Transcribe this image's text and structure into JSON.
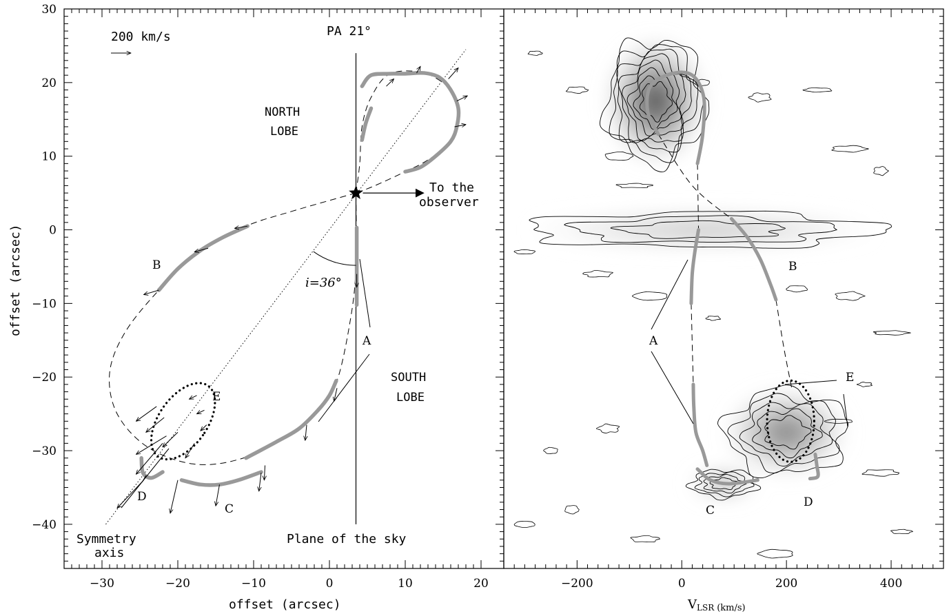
{
  "chart_data": [
    {
      "type": "scatter",
      "panel": "left",
      "xlabel": "offset (arcsec)",
      "ylabel": "offset (arcsec)",
      "xlim": [
        -35,
        23
      ],
      "ylim": [
        -46,
        30
      ],
      "xticks": [
        "-30",
        "-20",
        "-10",
        "0",
        "10",
        "20"
      ],
      "xtick_values": [
        -30,
        -20,
        -10,
        0,
        10,
        20
      ],
      "yticks": [
        "-40",
        "-30",
        "-20",
        "-10",
        "0",
        "10",
        "20",
        "30"
      ],
      "ytick_values": [
        -40,
        -30,
        -20,
        -10,
        0,
        10,
        20,
        30
      ],
      "annotations": {
        "velocity_scale": "200 km/s",
        "pa": "PA 21°",
        "north_line1": "NORTH",
        "north_line2": "LOBE",
        "south_line1": "SOUTH",
        "south_line2": "LOBE",
        "observer_line1": "To the",
        "observer_line2": "observer",
        "inclination": "i=36°",
        "symmetry_line1": "Symmetry",
        "symmetry_line2": "axis",
        "plane_of_sky": "Plane of the sky",
        "label_A": "A",
        "label_B": "B",
        "label_C": "C",
        "label_D": "D",
        "label_E": "E"
      },
      "star_position": [
        3.5,
        5
      ],
      "symmetry_axis": [
        [
          -29.5,
          -40
        ],
        [
          18,
          24.5
        ]
      ],
      "plane_of_sky_x": 3.5,
      "inclination_deg": 36,
      "position_angle_deg": 21,
      "gray_segments": {
        "north_inner": [
          [
            4.3,
            12.2
          ],
          [
            4.8,
            14.5
          ],
          [
            5.5,
            16.5
          ]
        ],
        "north_loop": [
          [
            4.3,
            19.5
          ],
          [
            5.5,
            21.0
          ],
          [
            8.0,
            21.2
          ],
          [
            10.0,
            21.2
          ],
          [
            12.5,
            21.3
          ],
          [
            14.5,
            20.7
          ],
          [
            16.0,
            19.0
          ],
          [
            17.0,
            16.5
          ],
          [
            16.8,
            14.0
          ],
          [
            16.0,
            12.0
          ],
          [
            14.0,
            10.0
          ],
          [
            12.0,
            8.5
          ],
          [
            10.0,
            7.9
          ]
        ],
        "B": [
          [
            -22.5,
            -8.2
          ],
          [
            -20.0,
            -5.3
          ],
          [
            -17.0,
            -2.8
          ],
          [
            -14.0,
            -1.0
          ],
          [
            -10.8,
            0.5
          ]
        ],
        "A": [
          [
            3.6,
            0.3
          ],
          [
            3.6,
            -10.2
          ]
        ],
        "south_lower": [
          [
            0.9,
            -20.5
          ],
          [
            0.0,
            -22.5
          ],
          [
            -1.5,
            -24.5
          ],
          [
            -4.0,
            -27.0
          ],
          [
            -7.0,
            -28.8
          ],
          [
            -11.0,
            -31.0
          ]
        ],
        "C": [
          [
            -19.5,
            -34.0
          ],
          [
            -17.0,
            -34.6
          ],
          [
            -14.5,
            -34.6
          ],
          [
            -12.0,
            -34.0
          ],
          [
            -9.0,
            -32.9
          ]
        ],
        "D": [
          [
            -24.8,
            -31.0
          ],
          [
            -24.6,
            -33.0
          ],
          [
            -23.5,
            -33.7
          ],
          [
            -22.0,
            -32.9
          ]
        ]
      },
      "series": [
        {
          "name": "E",
          "style": "dotted-ellipse",
          "center": [
            -19.3,
            -26.0
          ],
          "rx": 6.4,
          "ry": 7.6,
          "tilt_deg": 35
        }
      ]
    },
    {
      "type": "heatmap",
      "panel": "right",
      "xlabel_main": "V",
      "xlabel_sub": "LSR",
      "xlabel_unit": "(km/s)",
      "xlim": [
        -340,
        500
      ],
      "ylim": [
        -46,
        30
      ],
      "xticks": [
        "-200",
        "0",
        "200",
        "400"
      ],
      "xtick_values": [
        -200,
        0,
        200,
        400
      ],
      "annotations": {
        "label_A": "A",
        "label_B": "B",
        "label_C": "C",
        "label_D": "D",
        "label_E": "E"
      },
      "emission_regions": [
        {
          "name": "north",
          "v_center": -50,
          "offset_center": 17.5,
          "v_halfwidth": 90,
          "offset_halfwidth": 8,
          "peak": 0.85
        },
        {
          "name": "equator",
          "v_center": 40,
          "offset_center": 0,
          "v_halfwidth": 320,
          "offset_halfwidth": 2.3,
          "peak": 0.3
        },
        {
          "name": "south",
          "v_center": 200,
          "offset_center": -27.5,
          "v_halfwidth": 110,
          "offset_halfwidth": 5.5,
          "peak": 0.6
        },
        {
          "name": "C",
          "v_center": 80,
          "offset_center": -34.5,
          "v_halfwidth": 60,
          "offset_halfwidth": 1.8,
          "peak": 0.45
        }
      ],
      "gray_segments": {
        "north": [
          [
            -45,
            13.0
          ],
          [
            -65,
            16.0
          ],
          [
            -60,
            19.5
          ],
          [
            -20,
            21.2
          ],
          [
            20,
            21.0
          ],
          [
            42,
            18.0
          ],
          [
            40,
            13.0
          ],
          [
            30,
            9.0
          ]
        ],
        "A": [
          [
            32,
            0.0
          ],
          [
            25,
            -3.0
          ],
          [
            20,
            -6.0
          ],
          [
            18,
            -10.0
          ]
        ],
        "B": [
          [
            95,
            1.5
          ],
          [
            125,
            -1.0
          ],
          [
            150,
            -4.0
          ],
          [
            170,
            -7.5
          ],
          [
            180,
            -9.5
          ]
        ],
        "south_A": [
          [
            22,
            -21.0
          ],
          [
            23,
            -24.0
          ],
          [
            27,
            -27.5
          ],
          [
            40,
            -30.0
          ],
          [
            48,
            -32.0
          ]
        ],
        "C": [
          [
            30,
            -32.5
          ],
          [
            55,
            -34.0
          ],
          [
            90,
            -34.5
          ],
          [
            145,
            -34.0
          ]
        ],
        "D": [
          [
            255,
            -30.5
          ],
          [
            258,
            -32.0
          ],
          [
            260,
            -33.5
          ],
          [
            245,
            -33.8
          ]
        ]
      },
      "series": [
        {
          "name": "E",
          "style": "dotted-ellipse",
          "center": [
            208,
            -26.0
          ],
          "rx": 60,
          "ry": 4.8,
          "tilt_deg": 0
        }
      ]
    }
  ],
  "colors": {
    "gray_curve": "#999999",
    "axis": "#000000",
    "background": "#ffffff"
  }
}
